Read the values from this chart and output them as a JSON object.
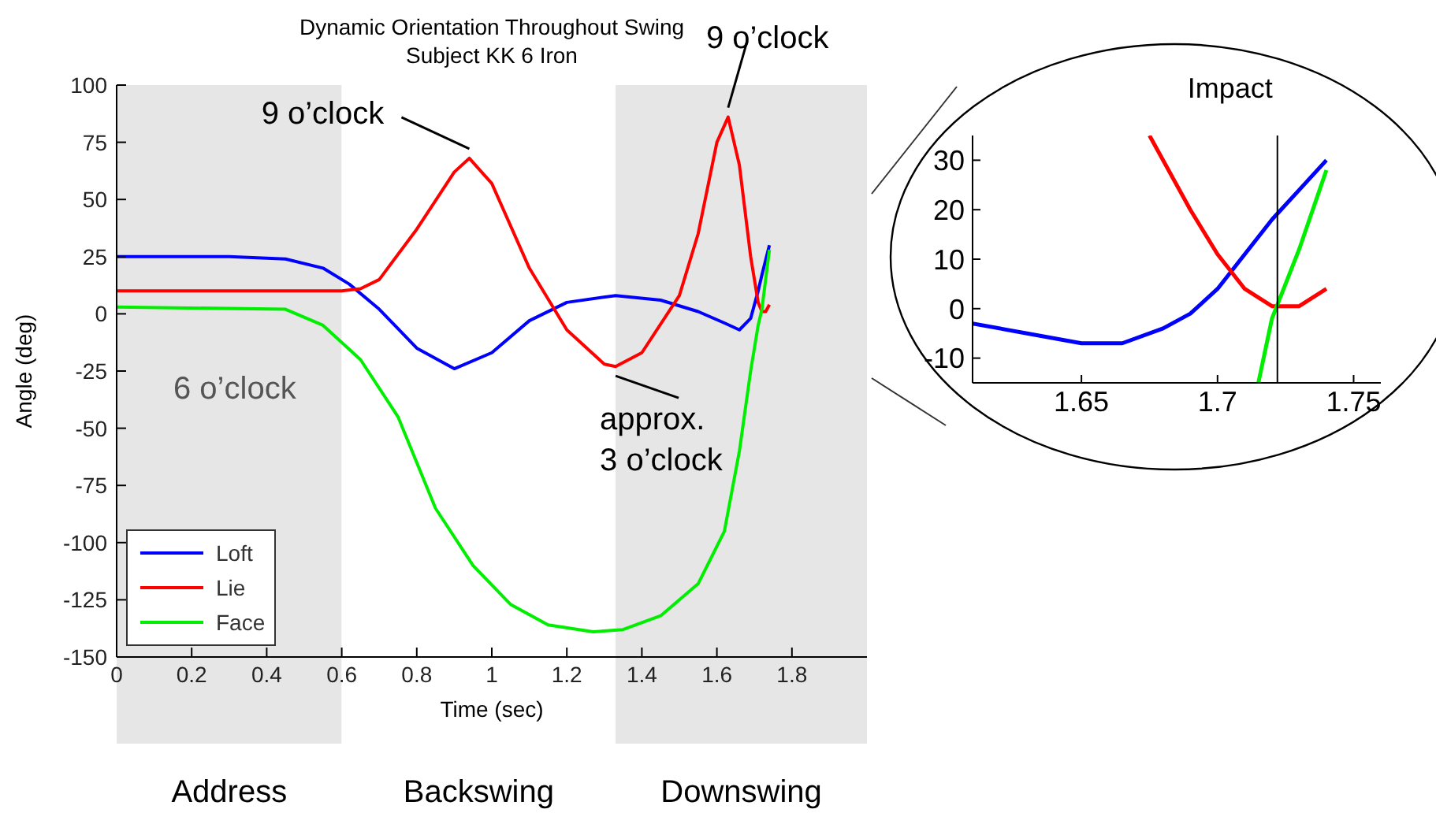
{
  "chart_data": [
    {
      "type": "line",
      "title": "Dynamic Orientation Throughout Swing",
      "subtitle": "Subject KK 6 Iron",
      "xlabel": "Time (sec)",
      "ylabel": "Angle (deg)",
      "xlim": [
        0,
        2
      ],
      "xticks": [
        0,
        0.2,
        0.4,
        0.6,
        0.8,
        1,
        1.2,
        1.4,
        1.6,
        1.8
      ],
      "ylim": [
        -150,
        100
      ],
      "yticks": [
        -150,
        -125,
        -100,
        -75,
        -50,
        -25,
        0,
        25,
        50,
        75,
        100
      ],
      "legend": "bottom left",
      "series": [
        {
          "name": "Loft",
          "color": "#0000ff",
          "x": [
            0,
            0.3,
            0.45,
            0.55,
            0.62,
            0.7,
            0.8,
            0.9,
            1.0,
            1.1,
            1.2,
            1.33,
            1.45,
            1.55,
            1.62,
            1.66,
            1.69,
            1.71,
            1.72,
            1.74
          ],
          "values": [
            25,
            25,
            24,
            20,
            13,
            2,
            -15,
            -24,
            -17,
            -3,
            5,
            8,
            6,
            1,
            -4,
            -7,
            -2,
            10,
            17,
            30
          ]
        },
        {
          "name": "Lie",
          "color": "#ff0000",
          "x": [
            0,
            0.6,
            0.65,
            0.7,
            0.8,
            0.9,
            0.94,
            1.0,
            1.1,
            1.2,
            1.3,
            1.33,
            1.4,
            1.5,
            1.55,
            1.6,
            1.63,
            1.66,
            1.69,
            1.71,
            1.72,
            1.73,
            1.74
          ],
          "values": [
            10,
            10,
            11,
            15,
            37,
            62,
            68,
            57,
            20,
            -7,
            -22,
            -23,
            -17,
            8,
            35,
            75,
            86,
            65,
            25,
            5,
            1,
            1,
            4
          ]
        },
        {
          "name": "Face",
          "color": "#00ee00",
          "x": [
            0,
            0.45,
            0.55,
            0.65,
            0.75,
            0.85,
            0.95,
            1.05,
            1.15,
            1.27,
            1.35,
            1.45,
            1.55,
            1.62,
            1.66,
            1.69,
            1.71,
            1.72,
            1.74
          ],
          "values": [
            3,
            2,
            -5,
            -20,
            -45,
            -85,
            -110,
            -127,
            -136,
            -139,
            -138,
            -132,
            -118,
            -95,
            -60,
            -25,
            -5,
            2,
            28
          ]
        }
      ],
      "bands": [
        {
          "axis": "x",
          "from": 0,
          "to": 0.6,
          "label": "Address",
          "color": "#e6e6e6"
        },
        {
          "axis": "x",
          "from": 0.6,
          "to": 1.33,
          "label": "Backswing",
          "color": "#ffffff"
        },
        {
          "axis": "x",
          "from": 1.33,
          "to": 2,
          "label": "Downswing",
          "color": "#e6e6e6"
        }
      ],
      "annotations": [
        {
          "text": "9 o’clock",
          "x": 0.94,
          "y": 68
        },
        {
          "text": "9 o’clock",
          "x": 1.63,
          "y": 86
        },
        "6 o’clock",
        {
          "text": "approx.\n3 o’clock",
          "x": 1.33,
          "y": -23
        }
      ]
    },
    {
      "type": "line",
      "xlim": [
        1.61,
        1.76
      ],
      "xticks": [
        1.65,
        1.7,
        1.75
      ],
      "ylim": [
        -15,
        35
      ],
      "yticks": [
        -10,
        0,
        10,
        20,
        30
      ],
      "series": [
        {
          "color": "#0000ff",
          "x": [
            1.61,
            1.63,
            1.65,
            1.665,
            1.68,
            1.69,
            1.7,
            1.71,
            1.72,
            1.73,
            1.74
          ],
          "values": [
            -3,
            -5,
            -7,
            -7,
            -4,
            -1,
            4,
            11,
            18,
            24,
            30
          ]
        },
        {
          "color": "#ff0000",
          "x": [
            1.675,
            1.69,
            1.7,
            1.71,
            1.72,
            1.73,
            1.74
          ],
          "values": [
            35,
            20,
            11,
            4,
            0.5,
            0.5,
            4
          ]
        },
        {
          "color": "#00ee00",
          "x": [
            1.715,
            1.72,
            1.725,
            1.73,
            1.74
          ],
          "values": [
            -15,
            -2,
            5,
            12,
            28
          ]
        }
      ],
      "ref_lines": [
        {
          "axis": "x",
          "value": 1.722,
          "label": "Impact"
        }
      ]
    }
  ]
}
